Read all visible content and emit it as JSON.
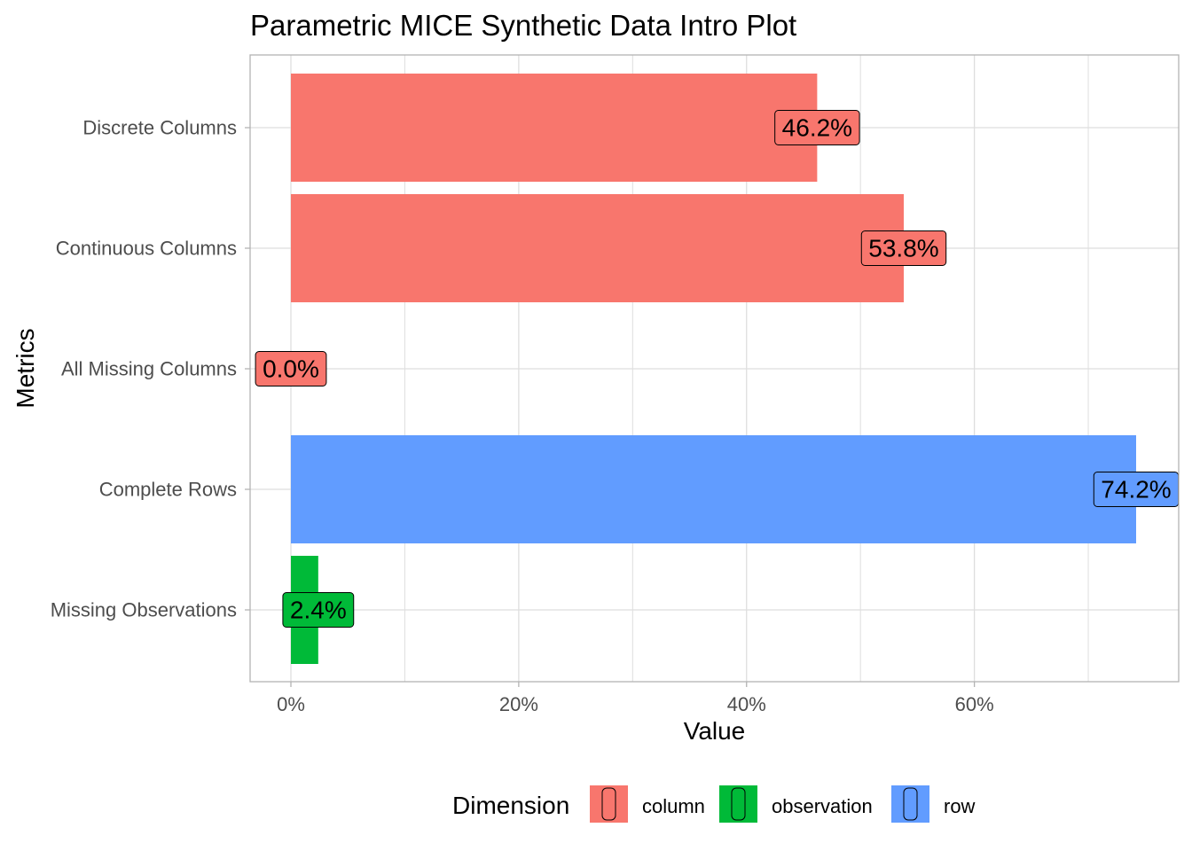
{
  "chart_data": {
    "type": "bar",
    "orientation": "horizontal",
    "title": "Parametric MICE Synthetic Data Intro Plot",
    "xlabel": "Value",
    "ylabel": "Metrics",
    "xlim": [
      0,
      0.742
    ],
    "x_ticks": [
      0,
      0.2,
      0.4,
      0.6
    ],
    "x_tick_labels": [
      "0%",
      "20%",
      "40%",
      "60%"
    ],
    "categories": [
      "Discrete Columns",
      "Continuous Columns",
      "All Missing Columns",
      "Complete Rows",
      "Missing Observations"
    ],
    "values": [
      0.462,
      0.538,
      0.0,
      0.742,
      0.024
    ],
    "labels": [
      "46.2%",
      "53.8%",
      "0.0%",
      "74.2%",
      "2.4%"
    ],
    "dimension": [
      "column",
      "column",
      "column",
      "row",
      "observation"
    ],
    "grid": true,
    "legend": {
      "title": "Dimension",
      "position": "bottom",
      "entries": [
        {
          "name": "column",
          "color": "#F8766D"
        },
        {
          "name": "observation",
          "color": "#00BA38"
        },
        {
          "name": "row",
          "color": "#619CFF"
        }
      ]
    }
  },
  "colors": {
    "column": "#F8766D",
    "observation": "#00BA38",
    "row": "#619CFF",
    "grid": "#dedede",
    "panel_border": "#b3b3b3"
  }
}
